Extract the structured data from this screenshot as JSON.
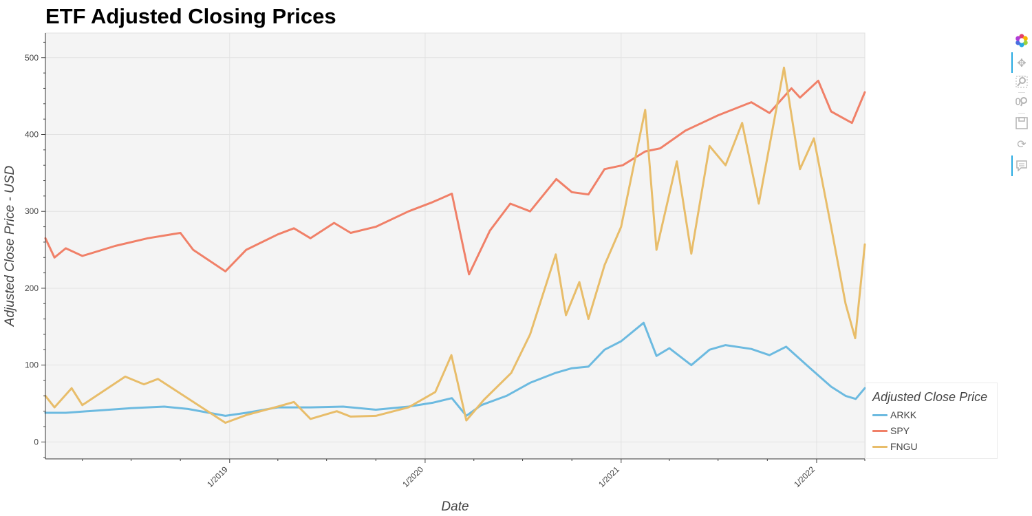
{
  "title": "ETF Adjusted Closing Prices",
  "chart_data": {
    "type": "line",
    "xlabel": "Date",
    "ylabel": "Adjusted Close Price - USD",
    "x_ticks": [
      "1/2019",
      "1/2020",
      "1/2021",
      "1/2022"
    ],
    "y_ticks": [
      0,
      100,
      200,
      300,
      400,
      500
    ],
    "xlim": [
      "2018-01-22",
      "2022-04-01"
    ],
    "ylim": [
      -22,
      532
    ],
    "grid": true,
    "legend_title": "Adjusted Close Price",
    "legend_position": "bottom-right",
    "series": [
      {
        "name": "ARKK",
        "color": "#6cbae0",
        "points": [
          [
            "2018-01-22",
            38
          ],
          [
            "2018-03-01",
            38
          ],
          [
            "2018-05-01",
            41
          ],
          [
            "2018-07-01",
            44
          ],
          [
            "2018-09-01",
            46
          ],
          [
            "2018-10-15",
            43
          ],
          [
            "2018-12-24",
            34
          ],
          [
            "2019-02-01",
            38
          ],
          [
            "2019-04-01",
            45
          ],
          [
            "2019-06-01",
            45
          ],
          [
            "2019-08-01",
            46
          ],
          [
            "2019-10-01",
            42
          ],
          [
            "2019-12-01",
            46
          ],
          [
            "2020-01-15",
            51
          ],
          [
            "2020-02-20",
            57
          ],
          [
            "2020-03-18",
            34
          ],
          [
            "2020-04-15",
            48
          ],
          [
            "2020-06-01",
            60
          ],
          [
            "2020-07-15",
            77
          ],
          [
            "2020-09-01",
            90
          ],
          [
            "2020-10-01",
            96
          ],
          [
            "2020-11-01",
            98
          ],
          [
            "2020-12-01",
            120
          ],
          [
            "2021-01-01",
            131
          ],
          [
            "2021-02-12",
            155
          ],
          [
            "2021-03-08",
            112
          ],
          [
            "2021-04-01",
            122
          ],
          [
            "2021-05-12",
            100
          ],
          [
            "2021-06-15",
            120
          ],
          [
            "2021-07-15",
            126
          ],
          [
            "2021-09-01",
            121
          ],
          [
            "2021-10-05",
            113
          ],
          [
            "2021-11-05",
            124
          ],
          [
            "2021-12-20",
            96
          ],
          [
            "2022-01-28",
            72
          ],
          [
            "2022-02-24",
            60
          ],
          [
            "2022-03-15",
            56
          ],
          [
            "2022-04-01",
            70
          ]
        ]
      },
      {
        "name": "SPY",
        "color": "#f08068",
        "points": [
          [
            "2018-01-22",
            265
          ],
          [
            "2018-02-08",
            240
          ],
          [
            "2018-03-01",
            252
          ],
          [
            "2018-04-01",
            242
          ],
          [
            "2018-06-01",
            255
          ],
          [
            "2018-08-01",
            265
          ],
          [
            "2018-10-01",
            272
          ],
          [
            "2018-10-25",
            250
          ],
          [
            "2018-12-24",
            222
          ],
          [
            "2019-02-01",
            250
          ],
          [
            "2019-04-01",
            270
          ],
          [
            "2019-05-01",
            278
          ],
          [
            "2019-06-01",
            265
          ],
          [
            "2019-07-15",
            285
          ],
          [
            "2019-08-15",
            272
          ],
          [
            "2019-10-01",
            280
          ],
          [
            "2019-12-01",
            300
          ],
          [
            "2020-01-15",
            312
          ],
          [
            "2020-02-20",
            323
          ],
          [
            "2020-03-23",
            218
          ],
          [
            "2020-05-01",
            275
          ],
          [
            "2020-06-08",
            310
          ],
          [
            "2020-07-15",
            300
          ],
          [
            "2020-09-02",
            342
          ],
          [
            "2020-10-01",
            325
          ],
          [
            "2020-11-01",
            322
          ],
          [
            "2020-12-01",
            355
          ],
          [
            "2021-01-04",
            360
          ],
          [
            "2021-02-15",
            378
          ],
          [
            "2021-03-15",
            382
          ],
          [
            "2021-05-01",
            405
          ],
          [
            "2021-07-01",
            425
          ],
          [
            "2021-09-01",
            442
          ],
          [
            "2021-10-05",
            428
          ],
          [
            "2021-11-15",
            460
          ],
          [
            "2021-12-01",
            448
          ],
          [
            "2022-01-04",
            470
          ],
          [
            "2022-01-28",
            430
          ],
          [
            "2022-03-08",
            415
          ],
          [
            "2022-04-01",
            455
          ]
        ]
      },
      {
        "name": "FNGU",
        "color": "#e8bd6a",
        "points": [
          [
            "2018-01-22",
            60
          ],
          [
            "2018-02-08",
            45
          ],
          [
            "2018-03-12",
            70
          ],
          [
            "2018-04-01",
            48
          ],
          [
            "2018-06-20",
            85
          ],
          [
            "2018-07-25",
            75
          ],
          [
            "2018-08-20",
            82
          ],
          [
            "2018-10-01",
            63
          ],
          [
            "2018-12-24",
            25
          ],
          [
            "2019-02-01",
            35
          ],
          [
            "2019-04-01",
            46
          ],
          [
            "2019-05-01",
            52
          ],
          [
            "2019-06-01",
            30
          ],
          [
            "2019-07-20",
            40
          ],
          [
            "2019-08-15",
            33
          ],
          [
            "2019-10-01",
            34
          ],
          [
            "2019-12-01",
            45
          ],
          [
            "2020-01-20",
            65
          ],
          [
            "2020-02-19",
            113
          ],
          [
            "2020-03-18",
            28
          ],
          [
            "2020-04-20",
            55
          ],
          [
            "2020-06-10",
            90
          ],
          [
            "2020-07-15",
            140
          ],
          [
            "2020-09-01",
            244
          ],
          [
            "2020-09-20",
            165
          ],
          [
            "2020-10-15",
            208
          ],
          [
            "2020-11-01",
            160
          ],
          [
            "2020-12-01",
            230
          ],
          [
            "2021-01-01",
            280
          ],
          [
            "2021-02-15",
            432
          ],
          [
            "2021-03-08",
            250
          ],
          [
            "2021-04-15",
            365
          ],
          [
            "2021-05-12",
            245
          ],
          [
            "2021-06-15",
            385
          ],
          [
            "2021-07-15",
            360
          ],
          [
            "2021-08-15",
            415
          ],
          [
            "2021-09-15",
            310
          ],
          [
            "2021-11-01",
            487
          ],
          [
            "2021-12-01",
            355
          ],
          [
            "2021-12-27",
            395
          ],
          [
            "2022-01-28",
            280
          ],
          [
            "2022-02-24",
            180
          ],
          [
            "2022-03-14",
            135
          ],
          [
            "2022-04-01",
            257
          ]
        ]
      }
    ]
  },
  "toolbar": {
    "tools": [
      "bokeh-logo-icon",
      "pan-icon",
      "box-zoom-icon",
      "wheel-zoom-icon",
      "save-icon",
      "reset-icon",
      "hover-icon"
    ]
  }
}
